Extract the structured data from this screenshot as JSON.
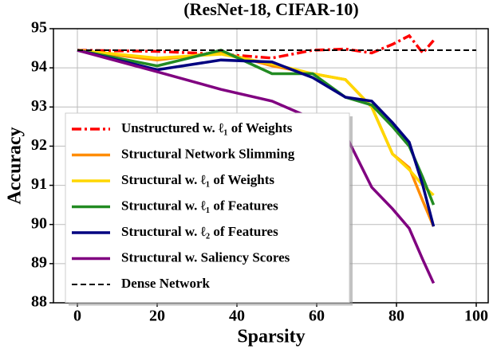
{
  "chart_data": {
    "type": "line",
    "title": "(ResNet-18, CIFAR-10)",
    "x_label": "Sparsity",
    "y_label": "Accuracy",
    "x": [
      0,
      20,
      36,
      48.8,
      59,
      67.2,
      73.8,
      79,
      83.2,
      86.6,
      89.3
    ],
    "series": [
      {
        "name": "Unstructured w. ℓ₁ of Weights",
        "color": "#ff0000",
        "style": "dashdot",
        "values": [
          94.45,
          94.42,
          94.35,
          94.25,
          94.45,
          94.48,
          94.38,
          94.6,
          94.82,
          94.38,
          94.7
        ]
      },
      {
        "name": "Structural Network Slimming",
        "color": "#ff8c00",
        "style": "solid",
        "values": [
          94.45,
          94.2,
          94.4,
          94.05,
          93.85,
          93.7,
          93.0,
          91.8,
          91.45,
          90.6,
          89.95
        ]
      },
      {
        "name": "Structural w. ℓ₁ of Weights",
        "color": "#ffd700",
        "style": "solid",
        "values": [
          94.45,
          94.25,
          94.35,
          94.1,
          93.85,
          93.7,
          93.0,
          91.8,
          91.4,
          91.0,
          90.75
        ]
      },
      {
        "name": "Structural w. ℓ₁ of Features",
        "color": "#228b22",
        "style": "solid",
        "values": [
          94.45,
          94.05,
          94.45,
          93.85,
          93.85,
          93.25,
          93.05,
          92.5,
          92.0,
          91.2,
          90.5
        ]
      },
      {
        "name": "Structural w. ℓ₂ of Features",
        "color": "#000080",
        "style": "solid",
        "values": [
          94.45,
          93.95,
          94.2,
          94.15,
          93.75,
          93.25,
          93.15,
          92.6,
          92.1,
          91.0,
          89.95
        ]
      },
      {
        "name": "Structural w. Saliency Scores",
        "color": "#800080",
        "style": "solid",
        "values": [
          94.45,
          93.9,
          93.45,
          93.15,
          92.7,
          92.3,
          90.95,
          90.4,
          89.9,
          89.1,
          88.5
        ]
      },
      {
        "name": "Dense Network",
        "color": "#000000",
        "style": "dashed",
        "x": [
          0,
          100
        ],
        "values": [
          94.45,
          94.45
        ]
      }
    ],
    "xlim": [
      -6,
      103
    ],
    "ylim": [
      88,
      95
    ],
    "xticks": [
      0,
      20,
      40,
      60,
      80,
      100
    ],
    "yticks": [
      88,
      89,
      90,
      91,
      92,
      93,
      94,
      95
    ],
    "grid": true,
    "legend": "lower left"
  }
}
